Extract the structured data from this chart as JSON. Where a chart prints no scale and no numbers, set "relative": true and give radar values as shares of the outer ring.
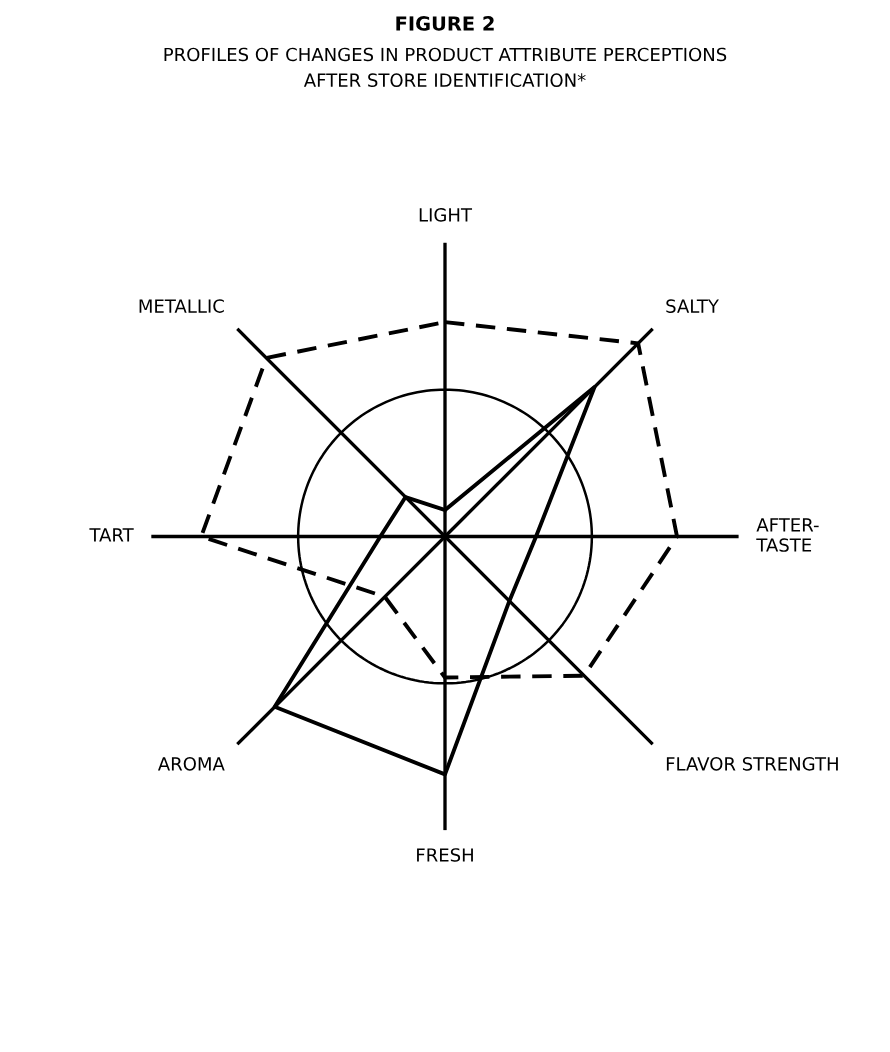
{
  "chart_data": {
    "type": "radar",
    "title": "FIGURE 2",
    "subtitle": "PROFILES OF CHANGES IN PRODUCT ATTRIBUTE PERCEPTIONS\nAFTER STORE IDENTIFICATION*",
    "categories": [
      "LIGHT",
      "SALTY",
      "AFTER-\nTASTE",
      "FLAVOR STRENGTH",
      "FRESH",
      "AROMA",
      "TART",
      "METALLIC"
    ],
    "relative": true,
    "grid": true,
    "marker": "none",
    "series": [
      {
        "color": "#000000",
        "line_style": "solid",
        "values": [
          0.09,
          0.72,
          0.31,
          0.31,
          0.81,
          0.82,
          0.22,
          0.19
        ]
      },
      {
        "color": "#000000",
        "line_style": "dashed",
        "values": [
          0.73,
          0.93,
          0.79,
          0.67,
          0.48,
          0.29,
          0.83,
          0.86
        ]
      }
    ]
  }
}
